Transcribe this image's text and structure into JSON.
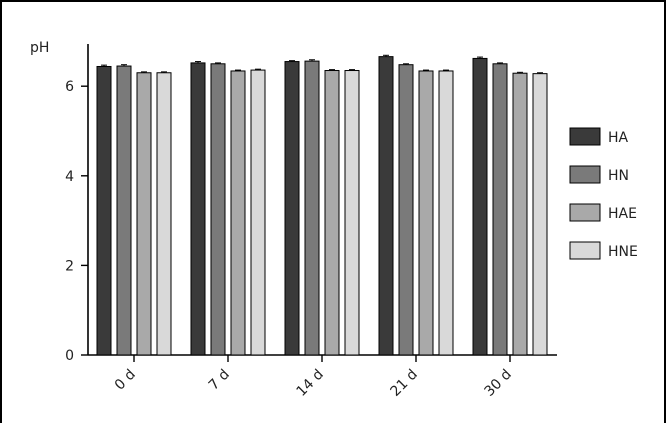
{
  "chart_data": {
    "type": "bar",
    "ylabel": "pH",
    "xlabel": "",
    "ylim": [
      0,
      7
    ],
    "yticks": [
      0,
      2,
      4,
      6
    ],
    "categories": [
      "0 d",
      "7 d",
      "14 d",
      "21 d",
      "30 d"
    ],
    "series": [
      {
        "name": "HA",
        "color": "#3a3a3a",
        "values": [
          6.44,
          6.52,
          6.55,
          6.66,
          6.62
        ],
        "errors": [
          0.03,
          0.03,
          0.02,
          0.03,
          0.03
        ]
      },
      {
        "name": "HN",
        "color": "#7a7a7a",
        "values": [
          6.45,
          6.5,
          6.56,
          6.48,
          6.5
        ],
        "errors": [
          0.03,
          0.02,
          0.03,
          0.02,
          0.02
        ]
      },
      {
        "name": "HAE",
        "color": "#a9a9a9",
        "values": [
          6.3,
          6.34,
          6.35,
          6.34,
          6.29
        ],
        "errors": [
          0.02,
          0.02,
          0.02,
          0.02,
          0.02
        ]
      },
      {
        "name": "HNE",
        "color": "#d9d9d9",
        "values": [
          6.3,
          6.36,
          6.35,
          6.34,
          6.28
        ],
        "errors": [
          0.02,
          0.02,
          0.02,
          0.02,
          0.02
        ]
      }
    ],
    "legend_position": "right",
    "grid": false
  }
}
